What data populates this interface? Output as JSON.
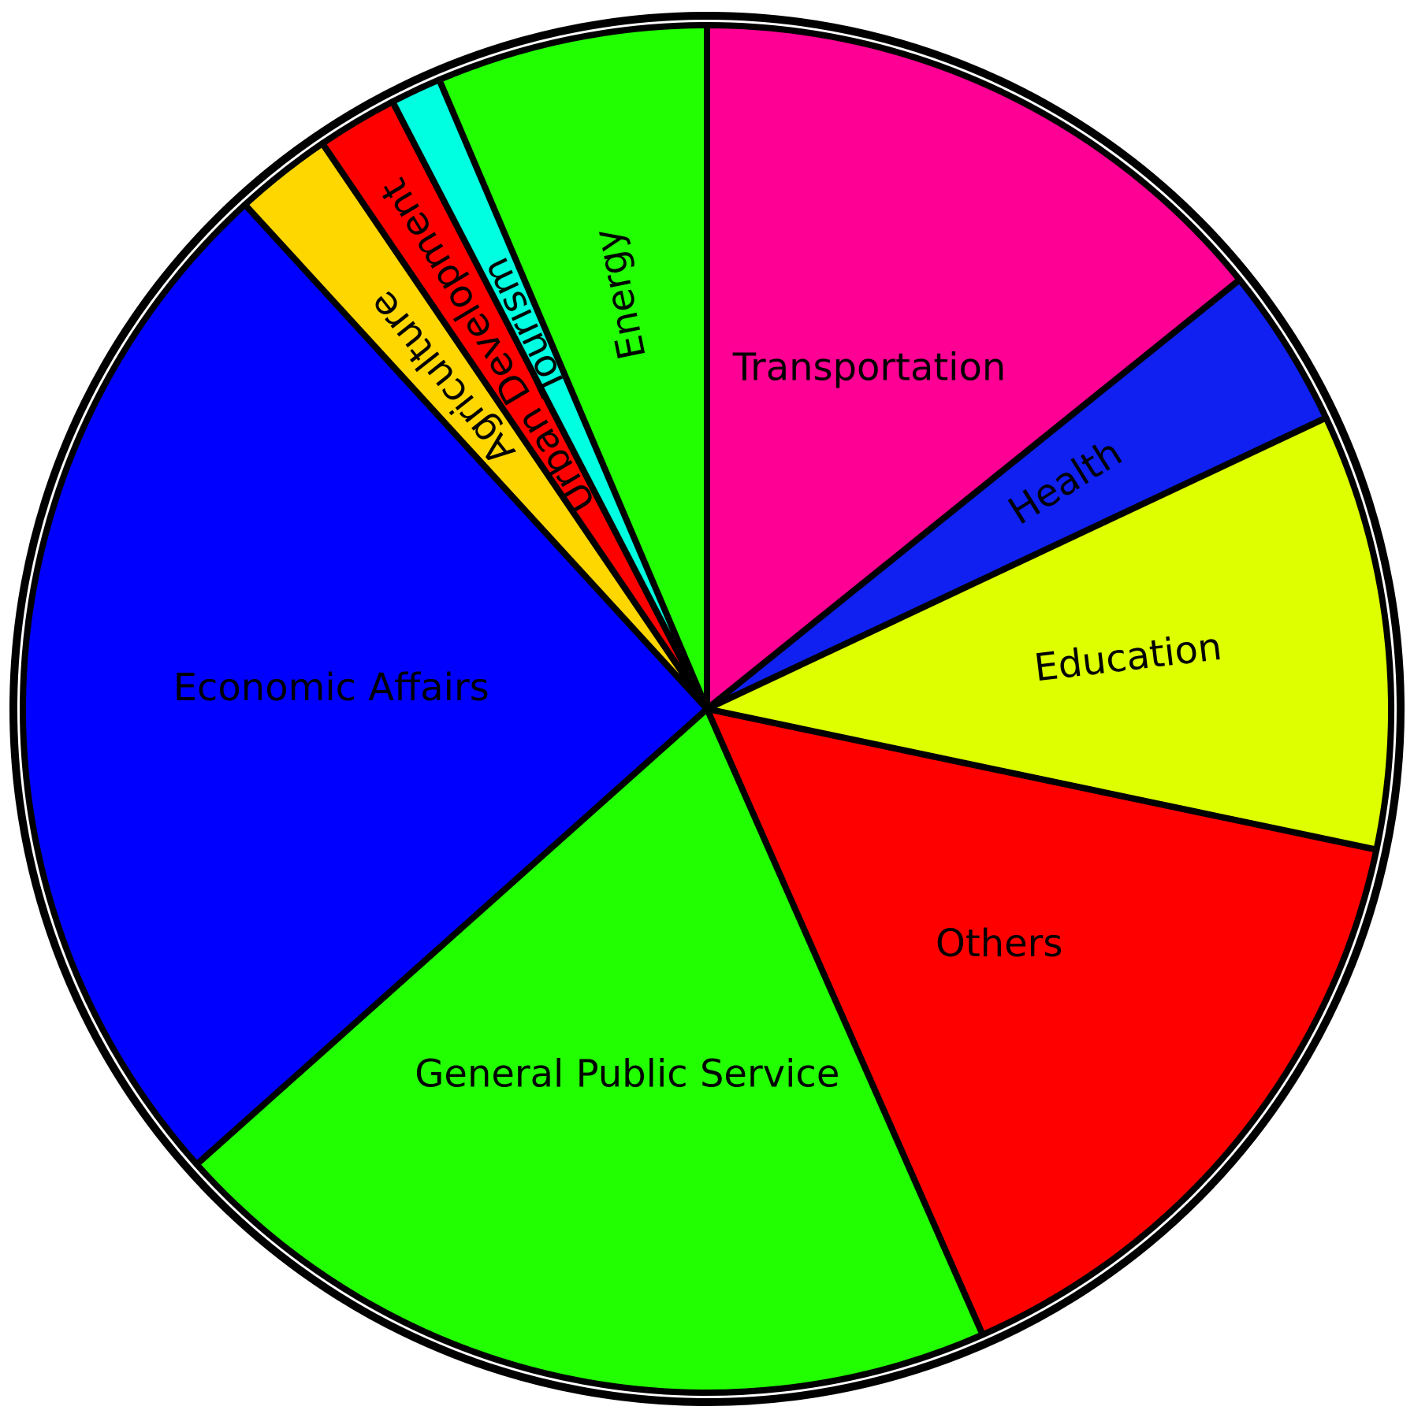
{
  "chart_data": {
    "type": "pie",
    "title": "",
    "labels_on_slices": true,
    "start": "12 o'clock",
    "direction": "clockwise",
    "slices": [
      {
        "label": "Transportation",
        "value": 14.2,
        "color": "#FF0094"
      },
      {
        "label": "Health",
        "value": 3.8,
        "color": "#0F20F0"
      },
      {
        "label": "Education",
        "value": 10.3,
        "color": "#DDFF00"
      },
      {
        "label": "Others",
        "value": 15.1,
        "color": "#FF0000"
      },
      {
        "label": "General Public Service",
        "value": 20.0,
        "color": "#22FF00"
      },
      {
        "label": "Economic Affairs",
        "value": 24.8,
        "color": "#0000FF"
      },
      {
        "label": "Agriculture",
        "value": 2.3,
        "color": "#FFD700"
      },
      {
        "label": "Urban Development",
        "value": 1.9,
        "color": "#FF0000"
      },
      {
        "label": "Tourism",
        "value": 1.2,
        "color": "#00FFE0"
      },
      {
        "label": "Energy",
        "value": 6.4,
        "color": "#22FF00"
      }
    ]
  }
}
